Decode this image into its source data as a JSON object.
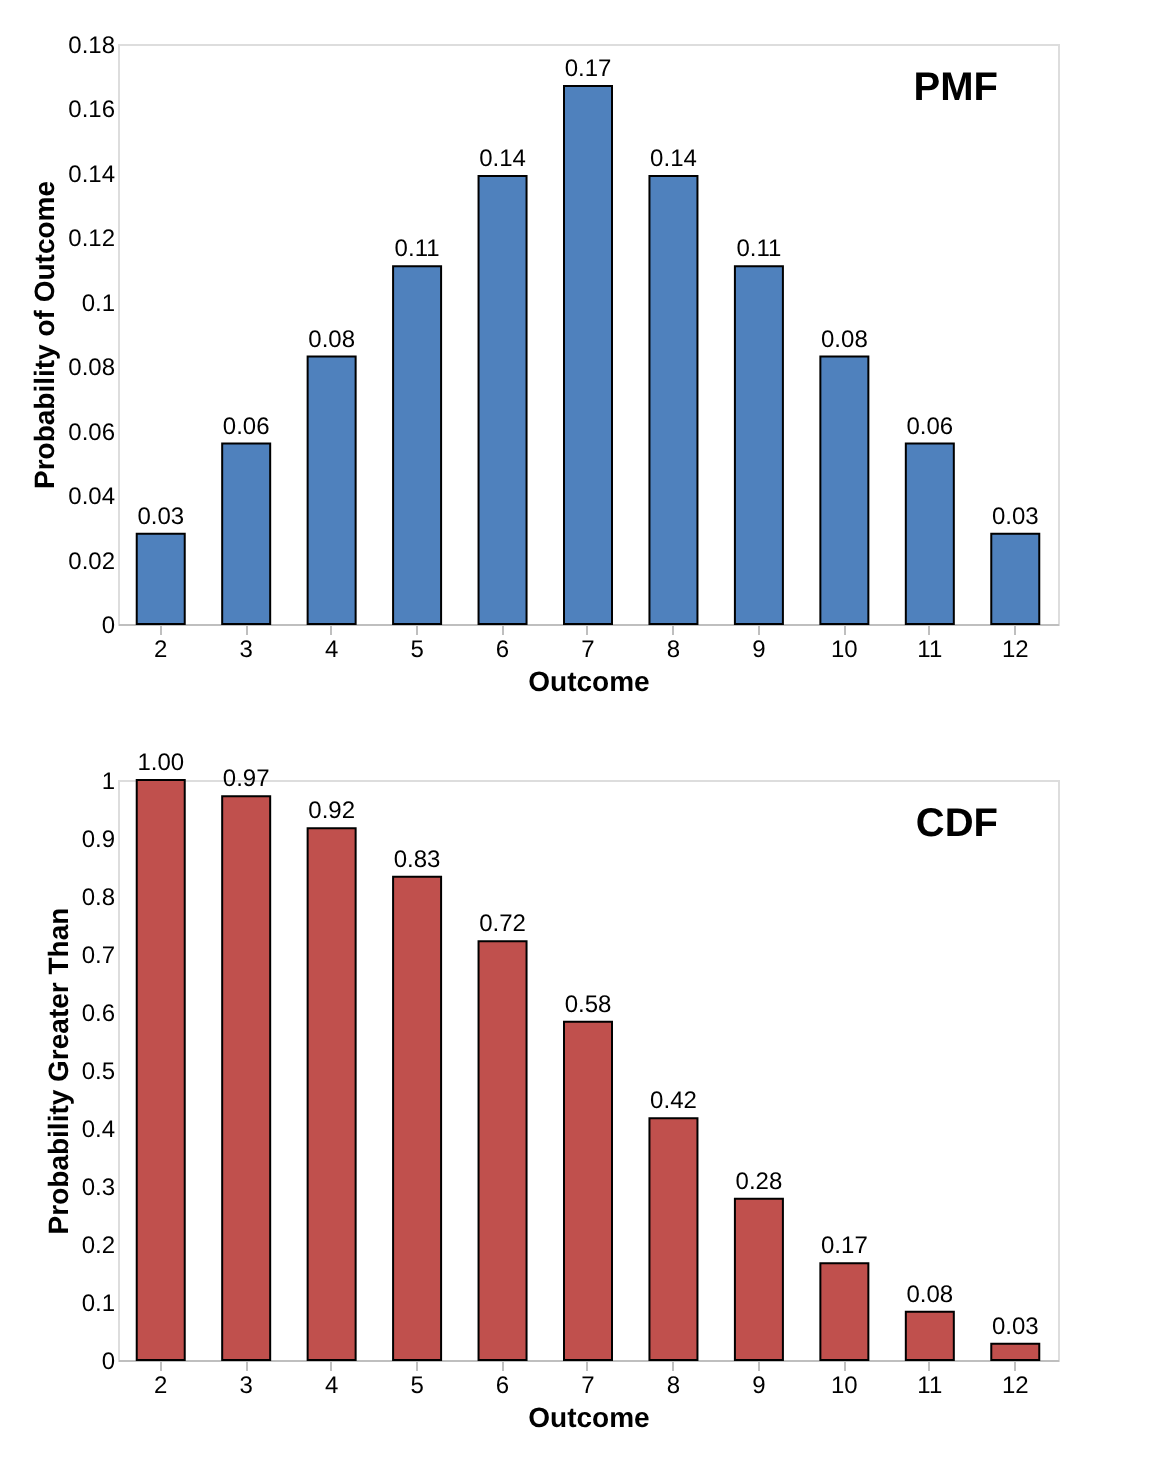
{
  "chart_data": [
    {
      "type": "bar",
      "xlabel": "Outcome",
      "ylabel": "Probability of Outcome",
      "annotations": [
        "PMF"
      ],
      "categories": [
        "2",
        "3",
        "4",
        "5",
        "6",
        "7",
        "8",
        "9",
        "10",
        "11",
        "12"
      ],
      "series": [
        {
          "color": "#4f81bd",
          "values": [
            0.028,
            0.056,
            0.083,
            0.111,
            0.139,
            0.167,
            0.139,
            0.111,
            0.083,
            0.056,
            0.028
          ],
          "value_labels": [
            "0.03",
            "0.06",
            "0.08",
            "0.11",
            "0.14",
            "0.17",
            "0.14",
            "0.11",
            "0.08",
            "0.06",
            "0.03"
          ]
        }
      ],
      "ylim": [
        0,
        0.18
      ],
      "yticks": [
        0,
        0.02,
        0.04,
        0.06,
        0.08,
        0.1,
        0.12,
        0.14,
        0.16,
        0.18
      ],
      "grid": false
    },
    {
      "type": "bar",
      "xlabel": "Outcome",
      "ylabel": "Probability Greater Than",
      "annotations": [
        "CDF"
      ],
      "categories": [
        "2",
        "3",
        "4",
        "5",
        "6",
        "7",
        "8",
        "9",
        "10",
        "11",
        "12"
      ],
      "series": [
        {
          "color": "#c0504d",
          "values": [
            1.0,
            0.972,
            0.917,
            0.833,
            0.722,
            0.583,
            0.417,
            0.278,
            0.167,
            0.083,
            0.028
          ],
          "value_labels": [
            "1.00",
            "0.97",
            "0.92",
            "0.83",
            "0.72",
            "0.58",
            "0.42",
            "0.28",
            "0.17",
            "0.08",
            "0.03"
          ]
        }
      ],
      "ylim": [
        0,
        1
      ],
      "yticks": [
        0,
        0.1,
        0.2,
        0.3,
        0.4,
        0.5,
        0.6,
        0.7,
        0.8,
        0.9,
        1
      ],
      "grid": false
    }
  ]
}
